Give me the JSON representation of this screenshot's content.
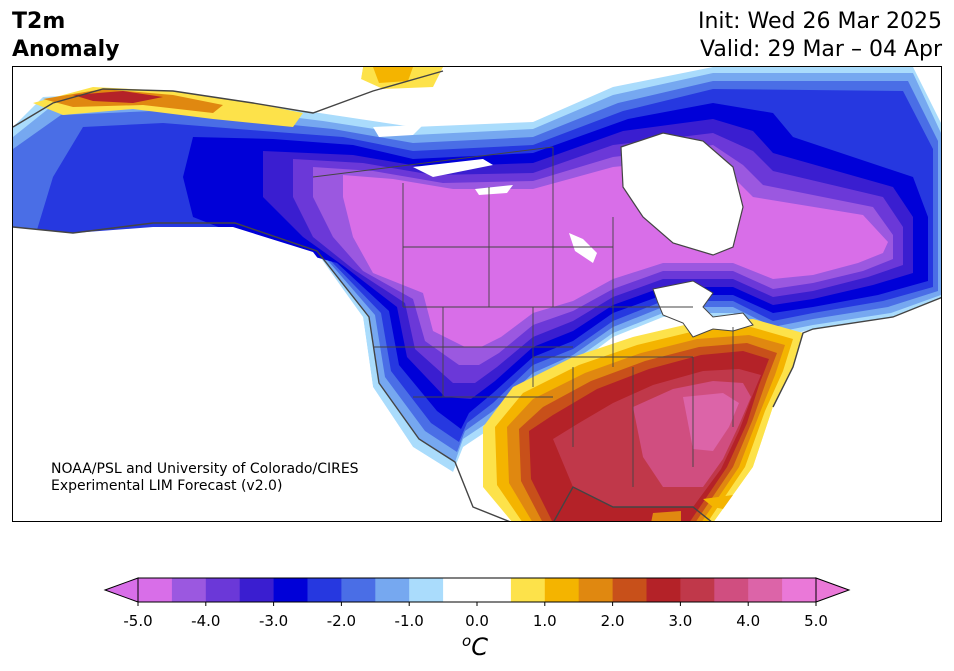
{
  "header": {
    "title_line1": "T2m",
    "title_line2": "Anomaly",
    "init": "Init: Wed 26 Mar 2025",
    "valid": "Valid: 29 Mar – 04 Apr"
  },
  "credit": {
    "line1": "NOAA/PSL and University of Colorado/CIRES",
    "line2": "Experimental LIM Forecast (v2.0)"
  },
  "colorbar": {
    "unit_sup": "o",
    "unit_main": "C",
    "ticks": [
      "-5.0",
      "-4.0",
      "-3.0",
      "-2.0",
      "-1.0",
      "0.0",
      "1.0",
      "2.0",
      "3.0",
      "4.0",
      "5.0"
    ],
    "colors": [
      "#d86ee8",
      "#9b58e0",
      "#6b38d8",
      "#3a1ed0",
      "#0000d8",
      "#2638e0",
      "#4a6ee6",
      "#76a8f0",
      "#aadcfc",
      "#ffffff",
      "#ffffff",
      "#fde24a",
      "#f4b400",
      "#e08810",
      "#c8501a",
      "#b42228",
      "#c0384a",
      "#d04e80",
      "#dc64a8",
      "#ea78d8"
    ]
  },
  "map": {
    "colors": {
      "strong_cold": "#d86ee8",
      "cold_purple": "#9b58e0",
      "cold_violet": "#6b38d8",
      "cold_indigo": "#3a1ed0",
      "cold_blue": "#0000d8",
      "cold_mid_blue": "#2638e0",
      "cold_light_blue": "#4a6ee6",
      "cool_sky": "#76a8f0",
      "cool_pale": "#aadcfc",
      "warm_yellow": "#fde24a",
      "warm_gold": "#f4b400",
      "warm_orange": "#e08810",
      "warm_dark_orange": "#c8501a",
      "warm_red": "#b42228",
      "warm_crimson": "#c0384a",
      "warm_rose": "#d04e80",
      "warm_pink": "#dc64a8",
      "border": "#444444"
    }
  }
}
